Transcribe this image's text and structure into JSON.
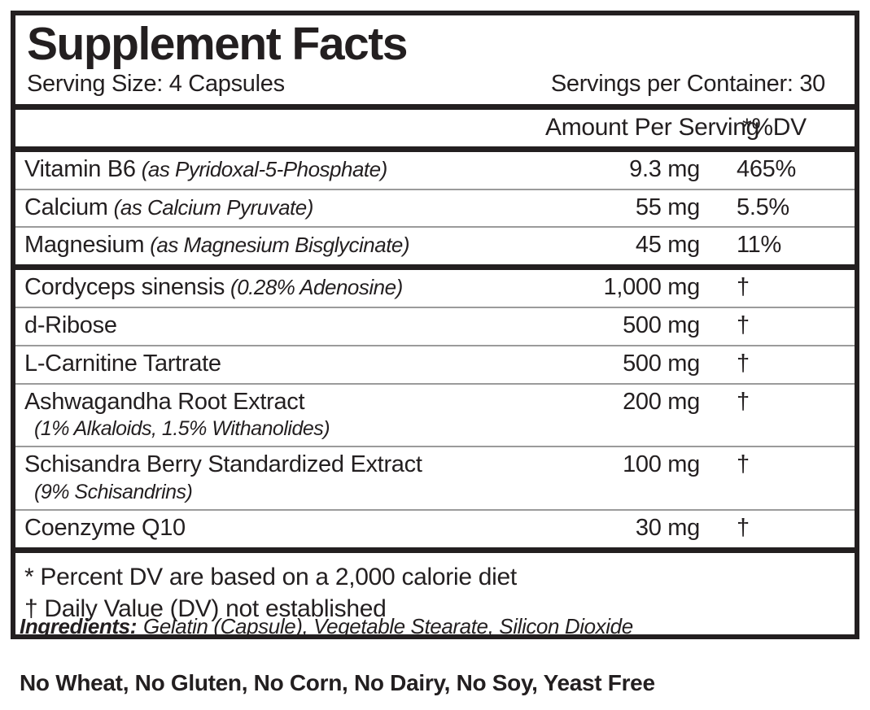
{
  "label": {
    "title": "Supplement Facts",
    "serving_size": "Serving Size: 4 Capsules",
    "servings_per_container": "Servings per Container: 30",
    "columns": {
      "amount": "Amount Per Serving",
      "dv": "*%DV"
    },
    "rows": [
      {
        "name": "Vitamin B6",
        "detail": "(as Pyridoxal-5-Phosphate)",
        "amount": "9.3 mg",
        "dv": "465%"
      },
      {
        "name": "Calcium",
        "detail": "(as Calcium Pyruvate)",
        "amount": "55 mg",
        "dv": "5.5%"
      },
      {
        "name": "Magnesium",
        "detail": "(as Magnesium Bisglycinate)",
        "amount": "45 mg",
        "dv": "11%"
      },
      {
        "name": "Cordyceps sinensis",
        "detail": "(0.28% Adenosine)",
        "amount": "1,000 mg",
        "dv": "†"
      },
      {
        "name": "d-Ribose",
        "amount": "500 mg",
        "dv": "†"
      },
      {
        "name": "L-Carnitine Tartrate",
        "amount": "500 mg",
        "dv": "†"
      },
      {
        "name": "Ashwagandha Root Extract",
        "subline": "(1% Alkaloids, 1.5% Withanolides)",
        "amount": "200 mg",
        "dv": "†"
      },
      {
        "name": "Schisandra Berry Standardized Extract",
        "subline": "(9% Schisandrins)",
        "amount": "100 mg",
        "dv": "†"
      },
      {
        "name": "Coenzyme Q10",
        "amount": "30 mg",
        "dv": "†"
      }
    ],
    "footnotes": [
      "* Percent DV are based on a 2,000 calorie diet",
      "† Daily Value (DV) not established"
    ],
    "ingredients_label": "Ingredients:",
    "ingredients": "Gelatin (Capsule), Vegetable Stearate, Silicon Dioxide",
    "allergen_statement": "No Wheat, No Gluten, No Corn, No Dairy, No Soy, Yeast Free",
    "colors": {
      "text": "#231f20",
      "thin_rule": "#9b9b9b"
    }
  }
}
